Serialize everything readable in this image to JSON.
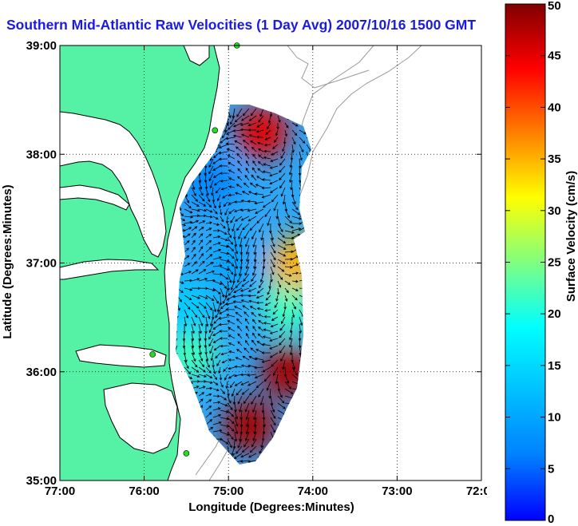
{
  "title": "Southern Mid-Atlantic Raw Velocities (1 Day Avg) 2007/10/16 1500 GMT",
  "map": {
    "xlabel": "Longitude (Degrees:Minutes)",
    "ylabel": "Latitude (Degrees:Minutes)",
    "x_ticks": [
      {
        "value": -77,
        "label": "77:00"
      },
      {
        "value": -76,
        "label": "76:00"
      },
      {
        "value": -75,
        "label": "75:00"
      },
      {
        "value": -74,
        "label": "74:00"
      },
      {
        "value": -73,
        "label": "73:00"
      },
      {
        "value": -72,
        "label": "72:00"
      }
    ],
    "y_ticks": [
      {
        "value": 35,
        "label": "35:00"
      },
      {
        "value": 36,
        "label": "36:00"
      },
      {
        "value": 37,
        "label": "37:00"
      },
      {
        "value": 38,
        "label": "38:00"
      },
      {
        "value": 39,
        "label": "39:00"
      }
    ],
    "xlim": [
      -77,
      -72
    ],
    "ylim": [
      35,
      39
    ],
    "grid": "dotted",
    "colors": {
      "land": "#55f2a6",
      "coastline": "#000000",
      "bathymetry": "#999999",
      "vectors": "#000000",
      "radar_sites": "#22dd22"
    },
    "radar_sites": [
      {
        "lon": -74.9,
        "lat": 39.0
      },
      {
        "lon": -75.16,
        "lat": 38.22
      },
      {
        "lon": -75.9,
        "lat": 36.16
      },
      {
        "lon": -75.5,
        "lat": 35.25
      }
    ]
  },
  "colorbar": {
    "label": "Surface Velocity (cm/s)",
    "min": 0,
    "max": 50,
    "ticks": [
      "0",
      "5",
      "10",
      "15",
      "20",
      "25",
      "30",
      "35",
      "40",
      "45",
      "50"
    ],
    "colormap": "jet"
  },
  "chart_data": {
    "type": "heatmap",
    "title": "Southern Mid-Atlantic Raw Velocities (1 Day Avg) 2007/10/16 1500 GMT",
    "xlabel": "Longitude (Degrees:Minutes)",
    "ylabel": "Latitude (Degrees:Minutes)",
    "xlim": [
      -77,
      -72
    ],
    "ylim": [
      35,
      39
    ],
    "value_label": "Surface Velocity (cm/s)",
    "value_range": [
      0,
      50
    ],
    "regions": [
      {
        "lon": -75.2,
        "lat": 37.75,
        "speed": 7
      },
      {
        "lon": -74.6,
        "lat": 38.2,
        "speed": 45
      },
      {
        "lon": -74.9,
        "lat": 37.0,
        "speed": 10
      },
      {
        "lon": -74.3,
        "lat": 36.6,
        "speed": 22
      },
      {
        "lon": -74.3,
        "lat": 36.0,
        "speed": 48
      },
      {
        "lon": -74.75,
        "lat": 35.5,
        "speed": 48
      },
      {
        "lon": -75.45,
        "lat": 36.15,
        "speed": 22
      },
      {
        "lon": -75.5,
        "lat": 36.6,
        "speed": 14
      },
      {
        "lon": -74.2,
        "lat": 37.0,
        "speed": 35
      }
    ]
  }
}
